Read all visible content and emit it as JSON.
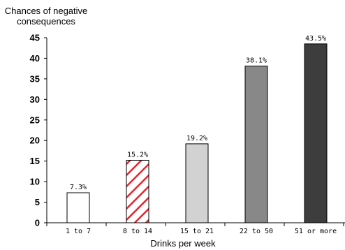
{
  "chart_data": {
    "type": "bar",
    "ylabel": "Chances of negative consequences",
    "ylabel_lines": [
      "Chances of negative",
      "consequences"
    ],
    "xlabel": "Drinks per week",
    "categories": [
      "1 to 7",
      "8 to 14",
      "15 to 21",
      "22 to 50",
      "51 or more"
    ],
    "values": [
      7.3,
      15.2,
      19.2,
      38.1,
      43.5
    ],
    "data_labels": [
      "7.3%",
      "15.2%",
      "19.2%",
      "38.1%",
      "43.5%"
    ],
    "ylim": [
      0,
      45
    ],
    "yticks": [
      0,
      5,
      10,
      15,
      20,
      25,
      30,
      35,
      40,
      45
    ],
    "grid": false,
    "legend": "none",
    "bar_styles": [
      {
        "fill": "#ffffff",
        "pattern": "none"
      },
      {
        "fill": "#ffffff",
        "pattern": "red-diagonal-hatch",
        "hatch_color": "#e8222a"
      },
      {
        "fill": "#d2d2d2",
        "pattern": "none"
      },
      {
        "fill": "#888888",
        "pattern": "none"
      },
      {
        "fill": "#3d3d3d",
        "pattern": "none"
      }
    ],
    "bar_outline": "#000000"
  }
}
